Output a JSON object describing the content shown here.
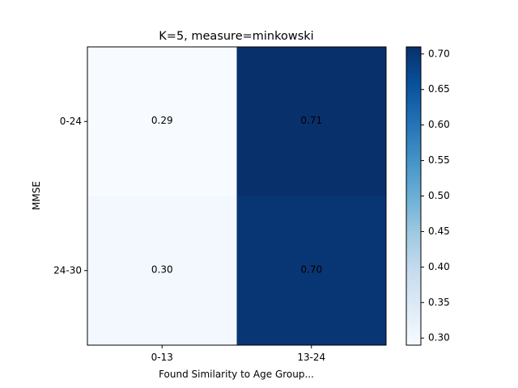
{
  "chart_data": {
    "type": "heatmap",
    "title": "K=5, measure=minkowski",
    "xlabel": "Found Similarity to Age Group...",
    "ylabel": "MMSE",
    "x_categories": [
      "0-13",
      "13-24"
    ],
    "y_categories": [
      "0-24",
      "24-30"
    ],
    "values": [
      [
        0.29,
        0.71
      ],
      [
        0.3,
        0.7
      ]
    ],
    "value_labels": [
      [
        "0.29",
        "0.71"
      ],
      [
        "0.30",
        "0.70"
      ]
    ],
    "colormap": "Blues",
    "colorbar": {
      "vmin": 0.29,
      "vmax": 0.71,
      "ticks": [
        0.3,
        0.35,
        0.4,
        0.45,
        0.5,
        0.55,
        0.6,
        0.65,
        0.7
      ],
      "tick_labels": [
        "0.30",
        "0.35",
        "0.40",
        "0.45",
        "0.50",
        "0.55",
        "0.60",
        "0.65",
        "0.70"
      ]
    }
  }
}
